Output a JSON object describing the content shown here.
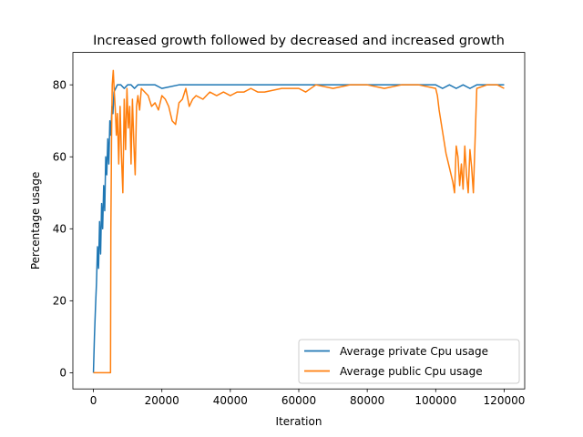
{
  "chart_data": {
    "type": "line",
    "title": "Increased growth followed by decreased and increased growth",
    "xlabel": "Iteration",
    "ylabel": "Percentage usage",
    "xlim": [
      -6000,
      126000
    ],
    "ylim": [
      -4.5,
      89
    ],
    "xticks": [
      0,
      20000,
      40000,
      60000,
      80000,
      100000,
      120000
    ],
    "xtick_labels": [
      "0",
      "20000",
      "40000",
      "60000",
      "80000",
      "100000",
      "120000"
    ],
    "yticks": [
      0,
      20,
      40,
      60,
      80
    ],
    "ytick_labels": [
      "0",
      "20",
      "40",
      "60",
      "80"
    ],
    "grid": false,
    "legend_position": "lower-right",
    "series": [
      {
        "name": "Average private Cpu usage",
        "color": "#1f77b4",
        "x": [
          0,
          300,
          600,
          900,
          1200,
          1500,
          1800,
          2100,
          2400,
          2700,
          3000,
          3300,
          3600,
          3900,
          4200,
          4500,
          4800,
          5100,
          5400,
          5700,
          6000,
          6500,
          7000,
          7500,
          8000,
          9000,
          10000,
          11000,
          12000,
          13000,
          15000,
          18000,
          20000,
          25000,
          30000,
          35000,
          40000,
          45000,
          50000,
          55000,
          60000,
          65000,
          70000,
          75000,
          80000,
          85000,
          90000,
          95000,
          100000,
          102000,
          104000,
          106000,
          108000,
          110000,
          112000,
          115000,
          118000,
          120000
        ],
        "y": [
          0,
          10,
          18,
          25,
          35,
          29,
          42,
          33,
          47,
          40,
          52,
          45,
          60,
          55,
          65,
          58,
          70,
          66,
          74,
          72,
          78,
          79,
          80,
          80,
          80,
          79,
          80,
          80,
          79,
          80,
          80,
          80,
          79,
          80,
          80,
          80,
          80,
          80,
          80,
          80,
          80,
          80,
          80,
          80,
          80,
          80,
          80,
          80,
          80,
          79,
          80,
          79,
          80,
          79,
          80,
          80,
          80,
          80
        ]
      },
      {
        "name": "Average public Cpu usage",
        "color": "#ff7f0e",
        "x": [
          0,
          2000,
          4000,
          5000,
          5100,
          5300,
          5500,
          5800,
          6100,
          6400,
          6700,
          7000,
          7400,
          7800,
          8200,
          8600,
          9000,
          9400,
          9800,
          10200,
          10600,
          11000,
          11400,
          11800,
          12200,
          12600,
          13000,
          13500,
          14000,
          15000,
          16000,
          17000,
          18000,
          19000,
          20000,
          21000,
          22000,
          23000,
          24000,
          25000,
          26000,
          27000,
          28000,
          29000,
          30000,
          32000,
          34000,
          36000,
          38000,
          40000,
          42000,
          44000,
          46000,
          48000,
          50000,
          55000,
          60000,
          62000,
          65000,
          70000,
          75000,
          80000,
          85000,
          90000,
          95000,
          100000,
          100500,
          101000,
          102000,
          103000,
          104000,
          105000,
          105500,
          106000,
          106500,
          107000,
          107500,
          108000,
          108500,
          109000,
          109500,
          110000,
          110500,
          111000,
          112000,
          115000,
          118000,
          120000
        ],
        "y": [
          0,
          0,
          0,
          0,
          40,
          65,
          80,
          84,
          78,
          73,
          66,
          72,
          58,
          74,
          60,
          50,
          76,
          62,
          79,
          68,
          74,
          58,
          76,
          64,
          55,
          74,
          77,
          73,
          79,
          78,
          77,
          74,
          75,
          73,
          77,
          76,
          74,
          70,
          69,
          75,
          76,
          79,
          74,
          76,
          77,
          76,
          78,
          77,
          78,
          77,
          78,
          78,
          79,
          78,
          78,
          79,
          79,
          78,
          80,
          79,
          80,
          80,
          79,
          80,
          80,
          79,
          77,
          73,
          67,
          61,
          57,
          53,
          50,
          63,
          60,
          52,
          58,
          51,
          63,
          55,
          50,
          62,
          57,
          50,
          79,
          80,
          80,
          79
        ]
      }
    ]
  }
}
